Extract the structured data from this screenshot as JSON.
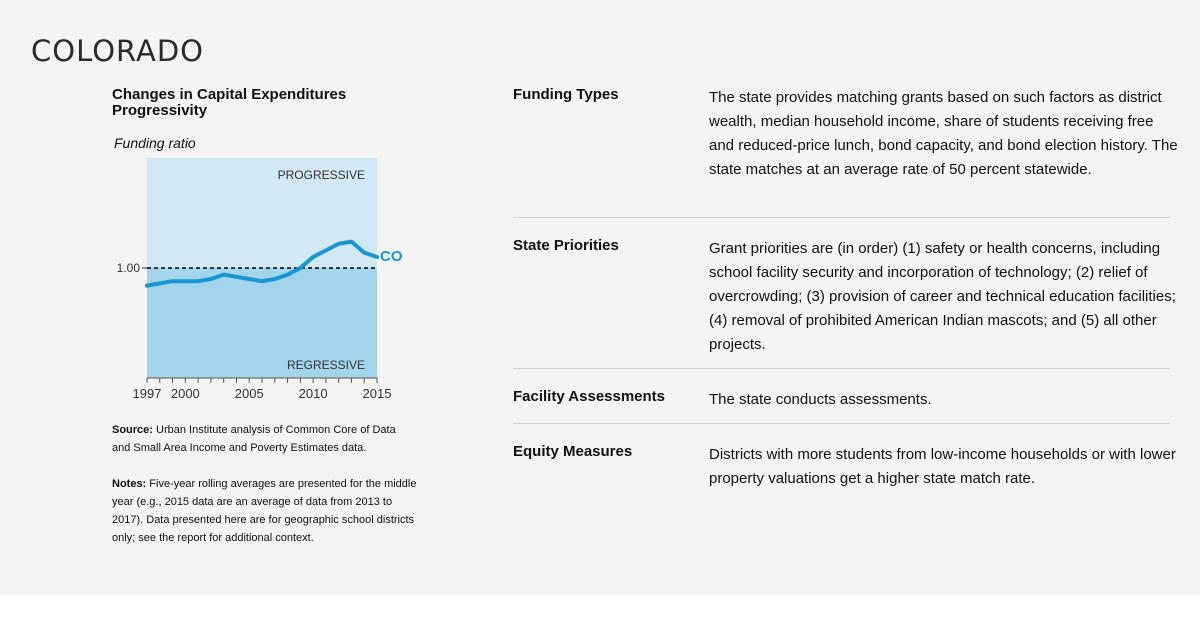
{
  "page": {
    "state_title": "COLORADO"
  },
  "chart": {
    "title": "Changes in Capital Expenditures Progressivity",
    "subtitle": "Funding ratio",
    "progressive_label": "PROGRESSIVE",
    "regressive_label": "REGRESSIVE",
    "reference_label": "1.00",
    "series_label": "CO",
    "x_tick_labels": [
      "1997",
      "2000",
      "2005",
      "2010",
      "2015"
    ],
    "colors": {
      "progressive_bg": "#d2e8f4",
      "regressive_bg": "#a2d4ec",
      "line": "#1696d2",
      "reference": "#000000"
    }
  },
  "chart_data": {
    "type": "line",
    "title": "Changes in Capital Expenditures Progressivity",
    "ylabel": "Funding ratio",
    "xlabel": "",
    "x": [
      1997,
      1998,
      1999,
      2000,
      2001,
      2002,
      2003,
      2004,
      2005,
      2006,
      2007,
      2008,
      2009,
      2010,
      2011,
      2012,
      2013,
      2014,
      2015
    ],
    "series": [
      {
        "name": "CO",
        "values": [
          0.92,
          0.93,
          0.94,
          0.94,
          0.94,
          0.95,
          0.97,
          0.96,
          0.95,
          0.94,
          0.95,
          0.97,
          1.0,
          1.05,
          1.08,
          1.11,
          1.12,
          1.07,
          1.05
        ]
      }
    ],
    "reference_line": 1.0,
    "annotations": [
      "PROGRESSIVE (above 1.00)",
      "REGRESSIVE (below 1.00)"
    ],
    "x_ticks": [
      1997,
      2000,
      2005,
      2010,
      2015
    ],
    "y_ticks": [
      1.0
    ],
    "xlim": [
      1997,
      2015
    ],
    "ylim": [
      0.5,
      1.5
    ],
    "grid": false,
    "legend": "direct label at line end"
  },
  "source": {
    "label": "Source:",
    "text": " Urban Institute analysis of Common Core of Data and Small Area Income and Poverty Estimates data."
  },
  "notes": {
    "label": "Notes:",
    "text": " Five-year rolling averages are presented for the middle year (e.g., 2015 data are an average of data from 2013 to 2017). Data presented here are for geographic school districts only; see the report for additional context."
  },
  "details": [
    {
      "label": "Funding Types",
      "text": "The state provides matching grants based on such factors as district wealth, median household income, share of students receiving free and reduced-price lunch, bond capacity, and bond election history. The state matches at an average rate of 50 percent statewide."
    },
    {
      "label": "State Priorities",
      "text": "Grant priorities are (in order) (1) safety or health concerns, including school facility security and incorporation of technology; (2) relief of overcrowding; (3) provision of career and technical education facilities; (4) removal of prohibited American Indian mascots; and (5) all other projects."
    },
    {
      "label": "Facility Assessments",
      "text": "The state conducts assessments."
    },
    {
      "label": "Equity Measures",
      "text": "Districts with more students from low-income households or with lower property valuations get a higher state match rate."
    }
  ]
}
